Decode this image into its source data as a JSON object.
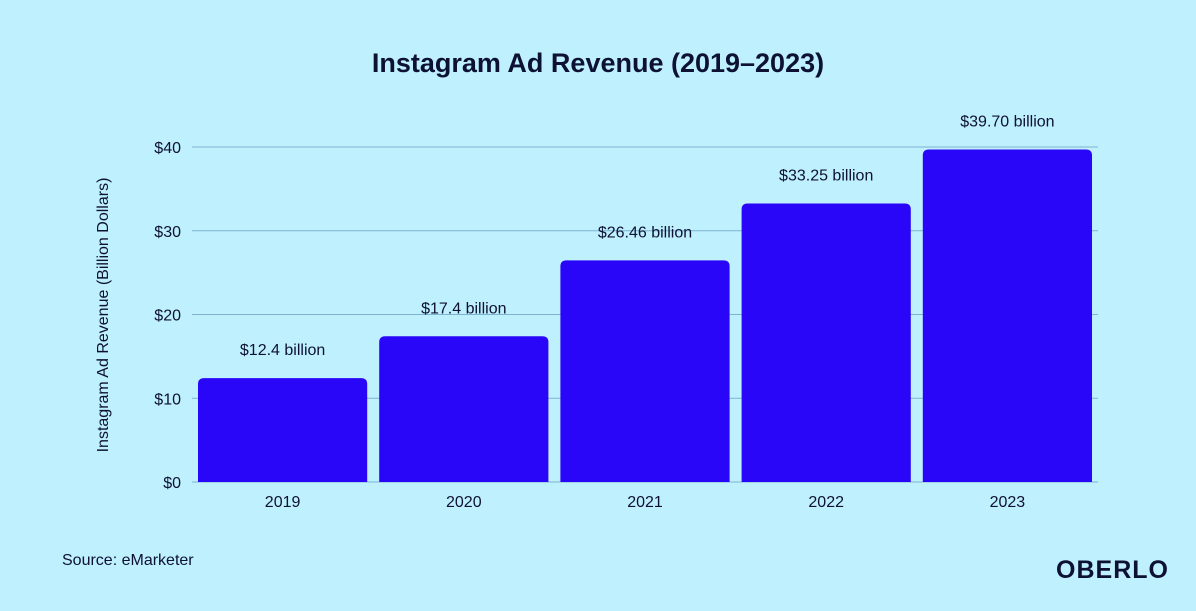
{
  "colors": {
    "background": "#bff0fd",
    "bar": "#2a06f8",
    "text": "#0d1133",
    "gridline": "#7fb3d0"
  },
  "footer": {
    "source": "Source: eMarketer",
    "logo": "OBERLO"
  },
  "chart_data": {
    "type": "bar",
    "title": "Instagram Ad Revenue (2019–2023)",
    "xlabel": "",
    "ylabel": "Instagram Ad Revenue (Billion Dollars)",
    "categories": [
      "2019",
      "2020",
      "2021",
      "2022",
      "2023"
    ],
    "values": [
      12.4,
      17.4,
      26.46,
      33.25,
      39.7
    ],
    "data_labels": [
      "$12.4 billion",
      "$17.4 billion",
      "$26.46 billion",
      "$33.25 billion",
      "$39.70 billion"
    ],
    "ylim": [
      0,
      40
    ],
    "y_ticks": [
      0,
      10,
      20,
      30,
      40
    ],
    "y_tick_labels": [
      "$0",
      "$10",
      "$20",
      "$30",
      "$40"
    ],
    "grid": true,
    "legend": "none"
  }
}
